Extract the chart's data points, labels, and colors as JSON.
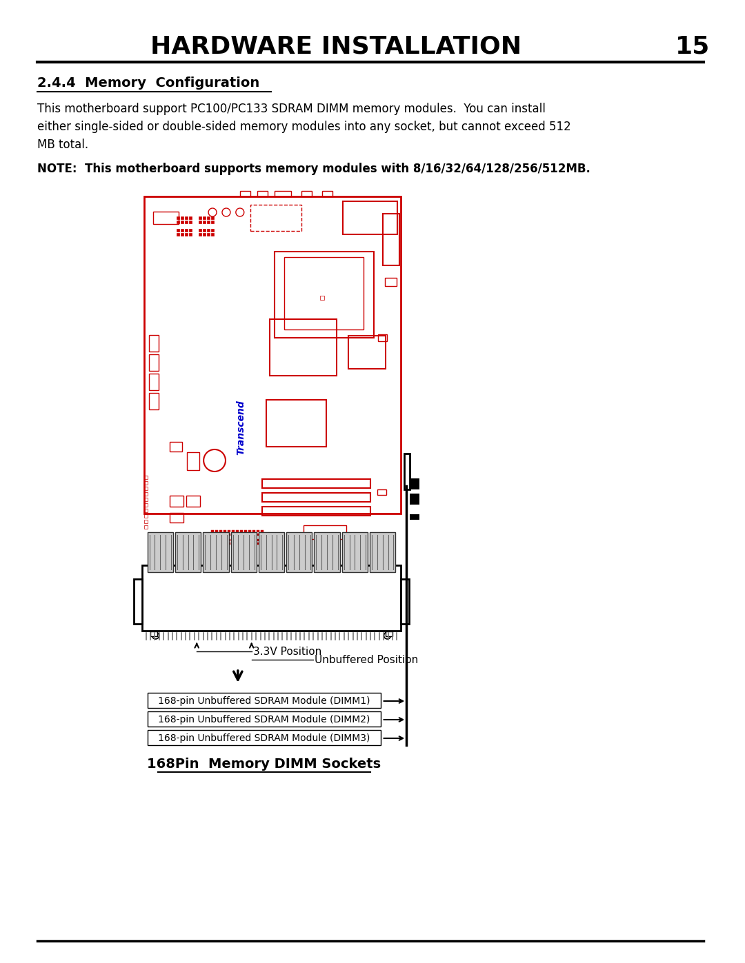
{
  "title": "HARDWARE INSTALLATION",
  "page_num": "15",
  "section": "2.4.4  Memory  Configuration",
  "body_line1": "This motherboard support PC100/PC133 SDRAM DIMM memory modules.  You can install",
  "body_line2": "either single-sided or double-sided memory modules into any socket, but cannot exceed 512",
  "body_line3": "MB total.",
  "note_text": "NOTE:  This motherboard supports memory modules with 8/16/32/64/128/256/512MB.",
  "label_33v": "3.3V Position",
  "label_unbuffered": "Unbuffered Position",
  "dimm1": "168-pin Unbuffered SDRAM Module (DIMM1)",
  "dimm2": "168-pin Unbuffered SDRAM Module (DIMM2)",
  "dimm3": "168-pin Unbuffered SDRAM Module (DIMM3)",
  "caption": "168Pin  Memory DIMM Sockets",
  "bg_color": "#ffffff",
  "text_color": "#000000",
  "red_color": "#cc0000",
  "blue_color": "#0000cc"
}
